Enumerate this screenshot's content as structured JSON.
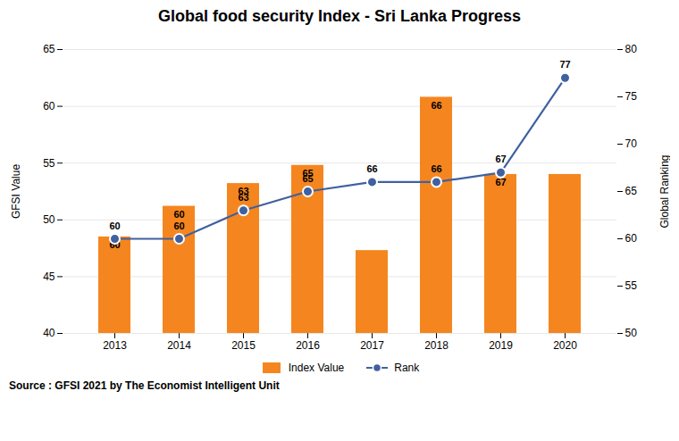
{
  "chart_data": {
    "type": "bar",
    "title": "Global food security Index - Sri Lanka Progress",
    "caption": "Source : GFSI 2021 by The Economist Intelligent Unit",
    "categories": [
      2013,
      2014,
      2015,
      2016,
      2017,
      2018,
      2019,
      2020
    ],
    "series": [
      {
        "name": "Index Value",
        "type": "bar",
        "color": "#F5861F",
        "values": [
          48.5,
          51.2,
          53.2,
          54.8,
          47.3,
          60.8,
          54.0,
          54.0
        ],
        "annotations": [
          "60",
          "60",
          "63",
          "65",
          null,
          "66",
          "67",
          null
        ]
      },
      {
        "name": "Rank",
        "type": "line",
        "axis": "y2",
        "color": "#4060A0",
        "marker": "circle",
        "data_labels": true,
        "values": [
          60,
          60,
          63,
          65,
          66,
          66,
          67,
          77
        ]
      }
    ],
    "ylabel": "GFSI Value",
    "y2label": "Global Ranking",
    "ylim": [
      40,
      65
    ],
    "yticks": [
      40,
      45,
      50,
      55,
      60,
      65
    ],
    "y2lim": [
      50,
      80
    ],
    "y2ticks": [
      50,
      55,
      60,
      65,
      70,
      75,
      80
    ],
    "grid": true,
    "legend": "bottom"
  }
}
